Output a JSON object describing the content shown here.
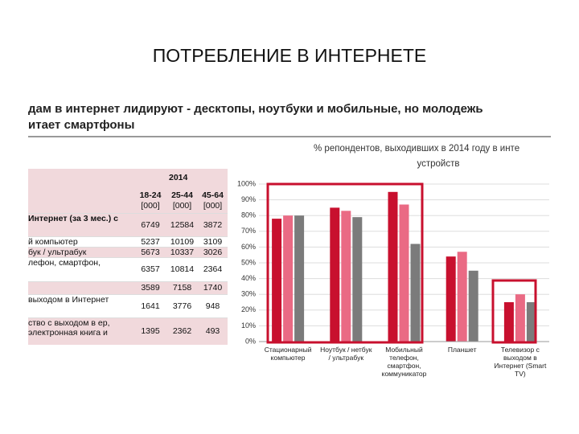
{
  "slide_title": "ПОТРЕБЛЕНИЕ В ИНТЕРНЕТЕ",
  "heading": [
    "дам в интернет лидируют - десктопы, ноутбуки и мобильные, но молодежь",
    "итает смартфоны"
  ],
  "table": {
    "year": "2014",
    "age_groups": [
      "18-24",
      "25-44",
      "45-64"
    ],
    "units": [
      "[000]",
      "[000]",
      "[000]"
    ],
    "rows": [
      {
        "label": "Интернет (за 3 мес.) с",
        "values": [
          6749,
          12584,
          3872
        ]
      },
      {
        "label": "й компьютер",
        "values": [
          5237,
          10109,
          3109
        ]
      },
      {
        "label": "бук / ультрабук",
        "values": [
          5673,
          10337,
          3026
        ]
      },
      {
        "label": "лефон, смартфон,",
        "values": [
          6357,
          10814,
          2364
        ]
      },
      {
        "label": null,
        "values": [
          3589,
          7158,
          1740
        ]
      },
      {
        "label": "выходом в Интернет",
        "values": [
          1641,
          3776,
          948
        ]
      },
      {
        "label": "ство с выходом в ер, электронная книга и",
        "values": [
          1395,
          2362,
          493
        ]
      }
    ]
  },
  "chart_data": {
    "type": "bar",
    "title": "% репондентов, выходивших в 2014 году в инте",
    "subtitle": "устройств",
    "categories": [
      "Стационарный компьютер",
      "Ноутбук / нетбук / ультрабук",
      "Мобильный телефон, смартфон, коммуникатор",
      "Планшет",
      "Телевизор с выходом в Интернет (Smart TV)"
    ],
    "series": [
      {
        "color": "#c8102e",
        "values": [
          78,
          85,
          95,
          54,
          25
        ]
      },
      {
        "color": "#ea6a84",
        "values": [
          80,
          83,
          87,
          57,
          30
        ]
      },
      {
        "color": "#7b7b7b",
        "values": [
          80,
          79,
          62,
          45,
          25
        ]
      }
    ],
    "ylim": [
      0,
      100
    ],
    "yticks": [
      {
        "value": 0,
        "label": "0%"
      },
      {
        "value": 10,
        "label": "10%"
      },
      {
        "value": 20,
        "label": "20%"
      },
      {
        "value": 30,
        "label": "30%"
      },
      {
        "value": 40,
        "label": "40%"
      },
      {
        "value": 50,
        "label": "50%"
      },
      {
        "value": 60,
        "label": "60%"
      },
      {
        "value": 70,
        "label": "70%"
      },
      {
        "value": 80,
        "label": "80%"
      },
      {
        "value": 90,
        "label": "90%"
      },
      {
        "value": 100,
        "label": "100%"
      }
    ],
    "grid": true
  }
}
